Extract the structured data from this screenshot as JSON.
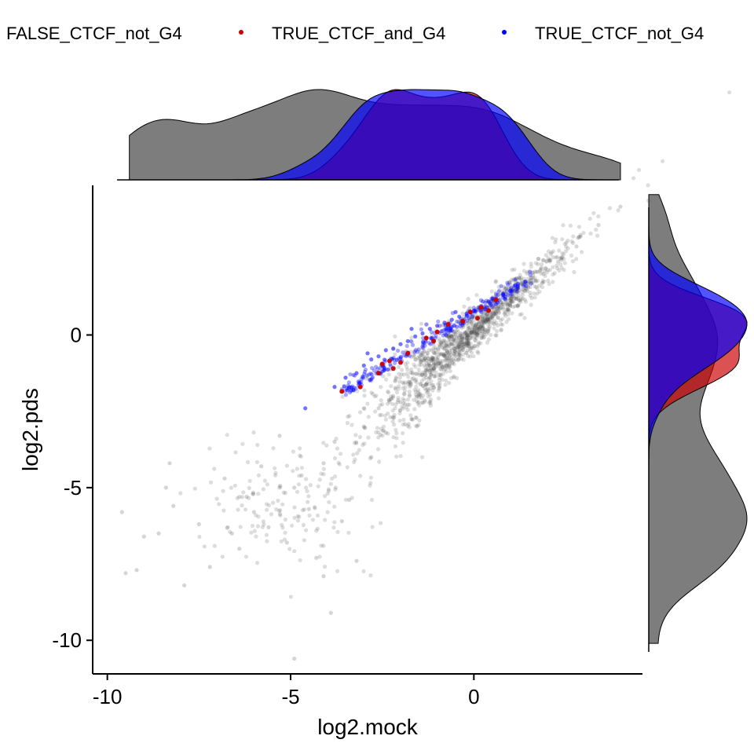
{
  "chart_data": {
    "type": "scatter",
    "xlabel": "log2.mock",
    "ylabel": "log2.pds",
    "xlim": [
      -10.4,
      4.6
    ],
    "ylim": [
      -11.1,
      4.9
    ],
    "x_ticks": [
      -10,
      -5,
      0
    ],
    "x_tick_labels": [
      "-10",
      "-5",
      "0"
    ],
    "y_ticks": [
      0,
      -5,
      -10
    ],
    "y_tick_labels": [
      "0",
      "-5",
      "-10"
    ],
    "legend_position": "top",
    "marginal_density": {
      "top": "x",
      "right": "y"
    },
    "series": [
      {
        "name": "FALSE_CTCF_not_G4",
        "color": "#404040",
        "points": [
          [
            -9.6,
            -5.8
          ],
          [
            -9.5,
            -7.8
          ],
          [
            -9.2,
            -7.7
          ],
          [
            -9.0,
            -6.6
          ],
          [
            -8.6,
            -6.5
          ],
          [
            -8.3,
            -4.2
          ],
          [
            -8.2,
            -5.6
          ],
          [
            -7.9,
            -8.2
          ],
          [
            -7.5,
            -6.2
          ],
          [
            -7.2,
            -7.6
          ],
          [
            -6.8,
            -4.7
          ],
          [
            -6.6,
            -6.5
          ],
          [
            -6.4,
            -7.0
          ],
          [
            -6.2,
            -5.3
          ],
          [
            -6.0,
            -5.8
          ],
          [
            -5.8,
            -4.3
          ],
          [
            -5.6,
            -6.3
          ],
          [
            -5.3,
            -3.3
          ],
          [
            -5.1,
            -6.8
          ],
          [
            -4.9,
            -5.0
          ],
          [
            -4.7,
            -4.6
          ],
          [
            -4.5,
            -5.7
          ],
          [
            -4.3,
            -7.3
          ],
          [
            -4.1,
            -4.2
          ],
          [
            -3.9,
            -9.1
          ],
          [
            -3.8,
            -3.5
          ],
          [
            -3.6,
            -6.1
          ],
          [
            -3.4,
            -5.4
          ],
          [
            -3.2,
            -7.4
          ],
          [
            -3.0,
            -3.0
          ],
          [
            -2.8,
            -4.0
          ],
          [
            -2.6,
            -2.4
          ],
          [
            -2.4,
            -3.2
          ],
          [
            -2.2,
            -2.0
          ],
          [
            -2.0,
            -2.2
          ],
          [
            -1.8,
            -1.6
          ],
          [
            -1.6,
            -1.5
          ],
          [
            -1.4,
            -1.3
          ],
          [
            -1.2,
            -1.0
          ],
          [
            -1.0,
            -0.8
          ],
          [
            -0.8,
            -0.7
          ],
          [
            -0.6,
            -0.3
          ],
          [
            -0.4,
            -0.3
          ],
          [
            -0.2,
            -0.1
          ],
          [
            0.0,
            0.1
          ],
          [
            0.2,
            0.3
          ],
          [
            0.4,
            0.5
          ],
          [
            0.6,
            0.7
          ],
          [
            0.8,
            0.9
          ],
          [
            1.0,
            1.2
          ],
          [
            1.3,
            1.5
          ],
          [
            1.6,
            1.7
          ],
          [
            1.9,
            2.0
          ],
          [
            2.3,
            2.4
          ],
          [
            2.8,
            2.9
          ],
          [
            3.4,
            3.6
          ],
          [
            4.0,
            4.2
          ],
          [
            -4.9,
            -10.6
          ],
          [
            -8.4,
            -5.0
          ],
          [
            -4.1,
            -7.9
          ]
        ]
      },
      {
        "name": "TRUE_CTCF_and_G4",
        "color": "#cc0000",
        "points": [
          [
            -3.6,
            -1.85
          ],
          [
            -3.1,
            -1.7
          ],
          [
            -2.6,
            -1.25
          ],
          [
            -2.5,
            -0.95
          ],
          [
            -2.3,
            -0.85
          ],
          [
            -2.2,
            -1.1
          ],
          [
            -2.0,
            -0.9
          ],
          [
            -1.8,
            -0.6
          ],
          [
            -1.3,
            -0.1
          ],
          [
            -1.1,
            -0.2
          ],
          [
            -1.0,
            0.1
          ],
          [
            -0.7,
            0.35
          ],
          [
            -0.3,
            0.45
          ],
          [
            -0.1,
            0.75
          ],
          [
            0.2,
            0.9
          ],
          [
            0.4,
            0.8
          ],
          [
            0.6,
            1.15
          ],
          [
            0.1,
            0.55
          ]
        ]
      },
      {
        "name": "TRUE_CTCF_not_G4",
        "color": "#0000ff",
        "points": [
          [
            -3.8,
            -1.7
          ],
          [
            -3.5,
            -1.4
          ],
          [
            -3.2,
            -1.25
          ],
          [
            -3.0,
            -1.0
          ],
          [
            -2.8,
            -0.8
          ],
          [
            -2.6,
            -0.7
          ],
          [
            -2.4,
            -0.5
          ],
          [
            -2.2,
            -0.45
          ],
          [
            -2.0,
            -0.3
          ],
          [
            -1.8,
            -0.2
          ],
          [
            -1.6,
            -0.05
          ],
          [
            -1.4,
            0.05
          ],
          [
            -1.2,
            0.2
          ],
          [
            -1.0,
            0.3
          ],
          [
            -0.8,
            0.4
          ],
          [
            -0.6,
            0.5
          ],
          [
            -0.4,
            0.6
          ],
          [
            -0.2,
            0.7
          ],
          [
            0.0,
            0.8
          ],
          [
            0.2,
            0.95
          ],
          [
            0.4,
            1.1
          ],
          [
            0.6,
            1.2
          ],
          [
            0.8,
            1.35
          ],
          [
            1.0,
            1.45
          ],
          [
            1.2,
            1.6
          ],
          [
            1.4,
            1.75
          ],
          [
            -4.6,
            -2.4
          ],
          [
            -2.9,
            -0.6
          ],
          [
            -1.7,
            0.2
          ],
          [
            -0.5,
            0.75
          ]
        ]
      }
    ]
  }
}
